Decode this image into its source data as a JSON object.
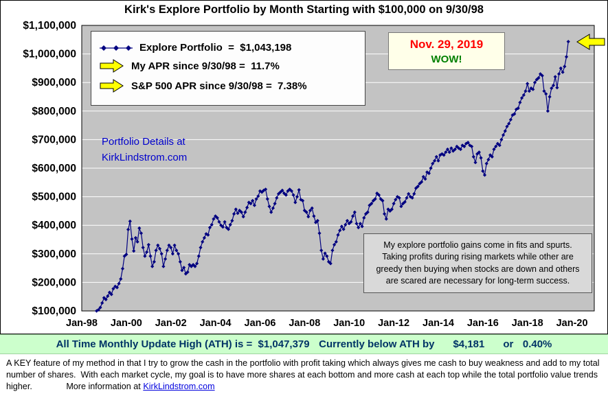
{
  "page": {
    "title": "Kirk's Explore Portfolio by Month Starting with $100,000 on 9/30/98"
  },
  "legend": {
    "explore_row": "Explore Portfolio  =  $1,043,198",
    "apr_row": "My APR since 9/30/98 =  11.7%",
    "sp500_row": "S&P 500 APR since 9/30/98 =  7.38%"
  },
  "date_box": {
    "date": "Nov. 29, 2019",
    "wow": "WOW!"
  },
  "details_note": {
    "line1": "Portfolio Details at",
    "line2": "KirkLindstrom.com"
  },
  "note_box": {
    "text": "My explore portfolio gains come in fits and spurts. Taking profits during rising markets while other are greedy then buying when stocks are down and others are scared are necessary for long-term success."
  },
  "ath_bar": {
    "label": "All Time Monthly Update High (ATH) is =",
    "ath_value": "$1,047,379",
    "below_label": "Currently below ATH by",
    "below_value": "$4,181",
    "or_label": "or",
    "below_pct": "0.40%"
  },
  "footer": {
    "text": "A KEY feature of my method in that I try to grow the cash in the portfolio with profit taking which always gives me cash to buy weakness and add to my total number of shares.  With each market cycle, my goal is to have more shares at each bottom and more cash at each top while the total portfolio value trends higher.",
    "more_label": "More information at",
    "link_text": "KirkLindstrom.com"
  },
  "colors": {
    "series_navy": "#000080",
    "plot_bg": "#c3c3c3",
    "grid_white": "#ffffff",
    "date_red": "#ff0000",
    "wow_green": "#008000",
    "details_blue": "#0000cc",
    "ath_bar_bg": "#ccffcc",
    "ath_text": "#003366",
    "arrow_yellow": "#ffff00",
    "note_bg": "#d9d9d9"
  },
  "chart_data": {
    "type": "line",
    "title": "Kirk's Explore Portfolio by Month Starting with $100,000 on 9/30/98",
    "start_value": "$100,000 on 9/30/98",
    "final_value": "$1,043,198 on Nov. 29, 2019",
    "ylim": [
      100000,
      1100000
    ],
    "ytick_step": 100000,
    "yticks": [
      "$1,100,000",
      "$1,000,000",
      "$900,000",
      "$800,000",
      "$700,000",
      "$600,000",
      "$500,000",
      "$400,000",
      "$300,000",
      "$200,000",
      "$100,000"
    ],
    "xticks": [
      "Jan-98",
      "Jan-00",
      "Jan-02",
      "Jan-04",
      "Jan-06",
      "Jan-08",
      "Jan-10",
      "Jan-12",
      "Jan-14",
      "Jan-16",
      "Jan-18",
      "Jan-20"
    ],
    "xtick_interval_months": 24,
    "x_axis_start": "1998-01",
    "x_axis_end": "2021-01",
    "grid": "horizontal",
    "legend_position": "top-left",
    "series": [
      {
        "name": "Explore Portfolio",
        "start": "1998-09",
        "frequency": "monthly",
        "unit_multiplier": 1000,
        "values_thousands": [
          100,
          104,
          112,
          128,
          146,
          140,
          152,
          165,
          158,
          178,
          186,
          182,
          196,
          212,
          248,
          292,
          298,
          385,
          414,
          352,
          310,
          356,
          342,
          390,
          372,
          322,
          292,
          306,
          332,
          292,
          256,
          272,
          312,
          330,
          318,
          300,
          256,
          282,
          312,
          330,
          322,
          300,
          330,
          312,
          300,
          272,
          242,
          252,
          230,
          236,
          262,
          256,
          262,
          256,
          266,
          292,
          322,
          342,
          356,
          370,
          366,
          392,
          402,
          422,
          432,
          426,
          412,
          400,
          394,
          412,
          392,
          386,
          402,
          416,
          440,
          456,
          442,
          452,
          446,
          430,
          446,
          462,
          480,
          476,
          486,
          470,
          492,
          502,
          520,
          516,
          522,
          526,
          492,
          466,
          446,
          460,
          476,
          496,
          510,
          516,
          522,
          512,
          506,
          520,
          526,
          520,
          506,
          480,
          500,
          524,
          490,
          486,
          452,
          446,
          430,
          452,
          460,
          432,
          410,
          416,
          372,
          312,
          282,
          302,
          292,
          272,
          266,
          312,
          332,
          342,
          366,
          382,
          396,
          386,
          402,
          416,
          406,
          412,
          432,
          446,
          406,
          392,
          406,
          396,
          426,
          440,
          446,
          470,
          476,
          486,
          492,
          512,
          506,
          492,
          486,
          440,
          422,
          456,
          450,
          456,
          476,
          490,
          500,
          496,
          466,
          476,
          482,
          496,
          510,
          500,
          496,
          510,
          530,
          536,
          546,
          552,
          570,
          562,
          586,
          582,
          600,
          616,
          626,
          640,
          626,
          646,
          650,
          646,
          656,
          666,
          656,
          670,
          660,
          666,
          676,
          670,
          666,
          680,
          676,
          686,
          690,
          680,
          676,
          640,
          620,
          650,
          656,
          636,
          590,
          576,
          616,
          630,
          646,
          640,
          666,
          676,
          686,
          680,
          700,
          716,
          730,
          746,
          756,
          770,
          786,
          790,
          806,
          810,
          830,
          846,
          856,
          870,
          896,
          870,
          880,
          876,
          900,
          910,
          916,
          930,
          924,
          870,
          860,
          800,
          850,
          880,
          890,
          920,
          882,
          930,
          950,
          936,
          956,
          990,
          1043.198
        ]
      }
    ]
  }
}
